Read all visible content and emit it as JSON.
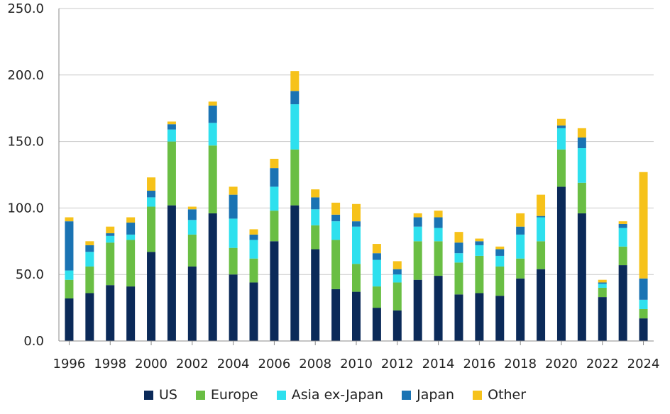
{
  "chart_data": {
    "type": "bar",
    "stacked": true,
    "categories": [
      "1996",
      "1997",
      "1998",
      "1999",
      "2000",
      "2001",
      "2002",
      "2003",
      "2004",
      "2005",
      "2006",
      "2007",
      "2008",
      "2009",
      "2010",
      "2011",
      "2012",
      "2013",
      "2014",
      "2015",
      "2016",
      "2017",
      "2018",
      "2019",
      "2020",
      "2021",
      "2022",
      "2023",
      "2024"
    ],
    "x_tick_labels": [
      "1996",
      "1998",
      "2000",
      "2002",
      "2004",
      "2006",
      "2008",
      "2010",
      "2012",
      "2014",
      "2016",
      "2018",
      "2020",
      "2022",
      "2024"
    ],
    "y_tick_labels": [
      "0.0",
      "50.0",
      "100.0",
      "150.0",
      "200.0",
      "250.0"
    ],
    "ylim": [
      0,
      250
    ],
    "grid": true,
    "legend_position": "bottom",
    "series": [
      {
        "name": "US",
        "color": "#0b2a59",
        "values": [
          32,
          36,
          42,
          41,
          67,
          102,
          56,
          96,
          50,
          44,
          75,
          102,
          69,
          39,
          37,
          25,
          23,
          46,
          49,
          35,
          36,
          34,
          47,
          54,
          116,
          96,
          33,
          57,
          17
        ]
      },
      {
        "name": "Europe",
        "color": "#6abe44",
        "values": [
          14,
          20,
          32,
          35,
          34,
          48,
          24,
          51,
          20,
          18,
          23,
          42,
          18,
          37,
          21,
          16,
          21,
          29,
          26,
          24,
          28,
          22,
          15,
          21,
          28,
          23,
          7,
          14,
          7
        ]
      },
      {
        "name": "Asia ex-Japan",
        "color": "#2ee0ee",
        "values": [
          7,
          11,
          5,
          4,
          7,
          9,
          11,
          17,
          22,
          14,
          18,
          34,
          12,
          14,
          28,
          20,
          6,
          11,
          10,
          7,
          8,
          8,
          18,
          18,
          16,
          26,
          3,
          14,
          7
        ]
      },
      {
        "name": "Japan",
        "color": "#1a73b3",
        "values": [
          37,
          5,
          2,
          9,
          5,
          4,
          8,
          13,
          18,
          4,
          14,
          10,
          9,
          5,
          4,
          5,
          4,
          7,
          8,
          8,
          3,
          5,
          6,
          1,
          2,
          8,
          1,
          3,
          16
        ]
      },
      {
        "name": "Other",
        "color": "#f6c21a",
        "values": [
          3,
          3,
          5,
          4,
          10,
          2,
          2,
          3,
          6,
          4,
          7,
          15,
          6,
          9,
          13,
          7,
          6,
          3,
          5,
          8,
          2,
          2,
          10,
          16,
          5,
          7,
          2,
          2,
          80
        ]
      }
    ]
  }
}
